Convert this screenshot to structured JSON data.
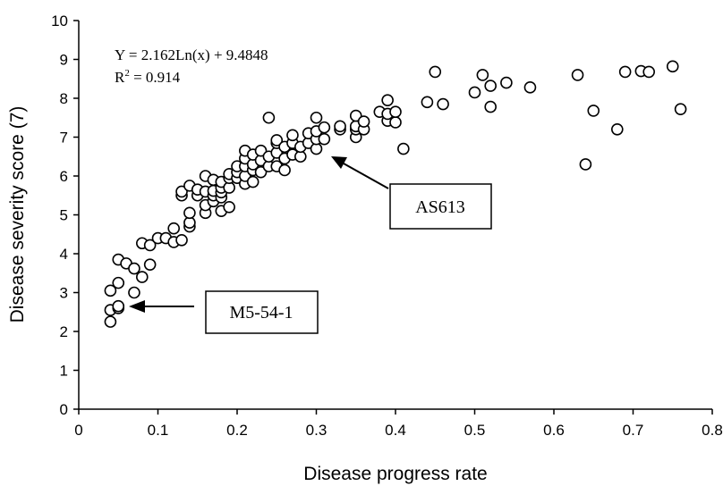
{
  "chart_data": {
    "type": "scatter",
    "xlabel": "Disease progress rate",
    "ylabel": "Disease severity score (7)",
    "xlim": [
      0,
      0.8
    ],
    "ylim": [
      0,
      10
    ],
    "xticks": [
      "0",
      "0.1",
      "0.2",
      "0.3",
      "0.4",
      "0.5",
      "0.6",
      "0.7",
      "0.8"
    ],
    "yticks": [
      "0",
      "1",
      "2",
      "3",
      "4",
      "5",
      "6",
      "7",
      "8",
      "9",
      "10"
    ],
    "grid": false,
    "legend": "none",
    "marker": "open-circle",
    "equation": {
      "line1": "Y = 2.162Ln(x) + 9.4848",
      "r2_prefix": "R",
      "r2_sup": "2",
      "r2_value": " = 0.914"
    },
    "annotations": [
      {
        "label": "AS613",
        "x": 0.32,
        "y": 6.6
      },
      {
        "label": "M5-54-1",
        "x": 0.05,
        "y": 2.6
      }
    ],
    "points": [
      [
        0.04,
        2.25
      ],
      [
        0.04,
        2.55
      ],
      [
        0.04,
        3.05
      ],
      [
        0.05,
        2.6
      ],
      [
        0.05,
        2.65
      ],
      [
        0.05,
        3.25
      ],
      [
        0.05,
        3.85
      ],
      [
        0.06,
        3.75
      ],
      [
        0.07,
        3.0
      ],
      [
        0.07,
        3.62
      ],
      [
        0.08,
        3.4
      ],
      [
        0.08,
        4.27
      ],
      [
        0.09,
        3.72
      ],
      [
        0.09,
        4.22
      ],
      [
        0.1,
        4.4
      ],
      [
        0.11,
        4.4
      ],
      [
        0.12,
        4.3
      ],
      [
        0.12,
        4.65
      ],
      [
        0.13,
        4.35
      ],
      [
        0.13,
        5.5
      ],
      [
        0.13,
        5.6
      ],
      [
        0.14,
        4.7
      ],
      [
        0.14,
        4.8
      ],
      [
        0.14,
        5.05
      ],
      [
        0.14,
        5.75
      ],
      [
        0.15,
        5.5
      ],
      [
        0.15,
        5.65
      ],
      [
        0.16,
        5.05
      ],
      [
        0.16,
        5.25
      ],
      [
        0.16,
        5.6
      ],
      [
        0.16,
        6.0
      ],
      [
        0.17,
        5.35
      ],
      [
        0.17,
        5.5
      ],
      [
        0.17,
        5.62
      ],
      [
        0.17,
        5.9
      ],
      [
        0.18,
        5.1
      ],
      [
        0.18,
        5.45
      ],
      [
        0.18,
        5.58
      ],
      [
        0.18,
        5.7
      ],
      [
        0.18,
        5.85
      ],
      [
        0.19,
        5.2
      ],
      [
        0.19,
        5.7
      ],
      [
        0.19,
        5.95
      ],
      [
        0.19,
        6.05
      ],
      [
        0.2,
        5.95
      ],
      [
        0.2,
        6.1
      ],
      [
        0.2,
        6.25
      ],
      [
        0.21,
        5.8
      ],
      [
        0.21,
        6.0
      ],
      [
        0.21,
        6.25
      ],
      [
        0.21,
        6.45
      ],
      [
        0.21,
        6.65
      ],
      [
        0.22,
        5.85
      ],
      [
        0.22,
        6.15
      ],
      [
        0.22,
        6.3
      ],
      [
        0.22,
        6.55
      ],
      [
        0.23,
        6.1
      ],
      [
        0.23,
        6.4
      ],
      [
        0.23,
        6.65
      ],
      [
        0.24,
        6.25
      ],
      [
        0.24,
        6.5
      ],
      [
        0.24,
        7.5
      ],
      [
        0.25,
        6.25
      ],
      [
        0.25,
        6.6
      ],
      [
        0.25,
        6.85
      ],
      [
        0.25,
        6.92
      ],
      [
        0.26,
        6.15
      ],
      [
        0.26,
        6.45
      ],
      [
        0.26,
        6.75
      ],
      [
        0.27,
        6.55
      ],
      [
        0.27,
        6.85
      ],
      [
        0.27,
        7.05
      ],
      [
        0.28,
        6.5
      ],
      [
        0.28,
        6.75
      ],
      [
        0.29,
        6.85
      ],
      [
        0.29,
        7.1
      ],
      [
        0.3,
        6.7
      ],
      [
        0.3,
        6.95
      ],
      [
        0.3,
        7.15
      ],
      [
        0.3,
        7.5
      ],
      [
        0.31,
        6.95
      ],
      [
        0.31,
        7.25
      ],
      [
        0.33,
        7.2
      ],
      [
        0.33,
        7.28
      ],
      [
        0.35,
        7.0
      ],
      [
        0.35,
        7.2
      ],
      [
        0.35,
        7.28
      ],
      [
        0.35,
        7.55
      ],
      [
        0.36,
        7.2
      ],
      [
        0.36,
        7.4
      ],
      [
        0.38,
        7.65
      ],
      [
        0.39,
        7.42
      ],
      [
        0.39,
        7.6
      ],
      [
        0.39,
        7.95
      ],
      [
        0.4,
        7.38
      ],
      [
        0.4,
        7.65
      ],
      [
        0.41,
        6.7
      ],
      [
        0.44,
        7.9
      ],
      [
        0.45,
        8.68
      ],
      [
        0.46,
        7.85
      ],
      [
        0.5,
        8.15
      ],
      [
        0.51,
        8.6
      ],
      [
        0.52,
        7.78
      ],
      [
        0.52,
        8.32
      ],
      [
        0.54,
        8.4
      ],
      [
        0.57,
        8.28
      ],
      [
        0.63,
        8.6
      ],
      [
        0.64,
        6.3
      ],
      [
        0.65,
        7.68
      ],
      [
        0.68,
        7.2
      ],
      [
        0.69,
        8.68
      ],
      [
        0.71,
        8.7
      ],
      [
        0.72,
        8.68
      ],
      [
        0.75,
        8.82
      ],
      [
        0.76,
        7.72
      ]
    ]
  }
}
